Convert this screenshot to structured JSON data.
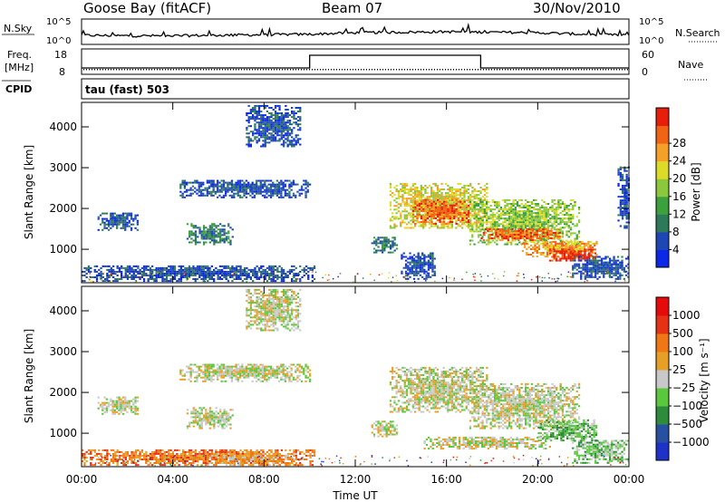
{
  "header": {
    "station": "Goose Bay (fitACF)",
    "beam": "Beam 07",
    "date": "30/Nov/2010"
  },
  "noise_panel": {
    "left_label": "N.Sky",
    "left_ticks": [
      "10^5",
      "10^0"
    ],
    "right_label": "N.Search",
    "right_ticks": [
      "10^5",
      "10^0"
    ]
  },
  "freq_panel": {
    "left_label_1": "Freq.",
    "left_label_2": "[MHz]",
    "left_ticks": [
      "18",
      "8"
    ],
    "right_label": "Nave",
    "right_ticks": [
      "60",
      "0"
    ],
    "cpid_label": "CPID",
    "mode_label": "tau (fast) 503"
  },
  "x_axis": {
    "title": "Time UT",
    "ticks": [
      "00:00",
      "04:00",
      "08:00",
      "12:00",
      "16:00",
      "20:00",
      "00:00"
    ]
  },
  "power_panel": {
    "ylabel": "Slant Range [km]",
    "yticks": [
      "1000",
      "2000",
      "3000",
      "4000"
    ],
    "colorbar_title": "Power [dB]",
    "colorbar_ticks": [
      "4",
      "8",
      "12",
      "16",
      "20",
      "24",
      "28"
    ],
    "colors": [
      "#0a28e6",
      "#1e46b4",
      "#2d7a5a",
      "#3ca03c",
      "#8cc83c",
      "#dcdc28",
      "#f5a028",
      "#f06414",
      "#e61e0a"
    ]
  },
  "velocity_panel": {
    "ylabel": "Slant Range [km]",
    "yticks": [
      "1000",
      "2000",
      "3000",
      "4000"
    ],
    "colorbar_title": "Velocity [m s⁻¹]",
    "colorbar_ticks": [
      "1000",
      "500",
      "100",
      "25",
      "−25",
      "−100",
      "−500",
      "−1000"
    ],
    "colors": [
      "#1e32c8",
      "#2850a0",
      "#2d8c3c",
      "#5ac83c",
      "#c8c8c8",
      "#e6a028",
      "#f07814",
      "#e63214",
      "#e60a0a"
    ]
  },
  "chart_data": [
    {
      "type": "line",
      "title": "N.Sky / N.Search",
      "x": [
        "00:00",
        "02:00",
        "04:00",
        "06:00",
        "08:00",
        "10:00",
        "12:00",
        "14:00",
        "16:00",
        "18:00",
        "20:00",
        "22:00",
        "24:00"
      ],
      "series": [
        {
          "name": "N.Sky",
          "values": [
            1.8,
            1.7,
            1.7,
            1.8,
            1.9,
            2.0,
            2.3,
            2.4,
            2.5,
            2.4,
            2.3,
            2.0,
            1.8
          ]
        }
      ],
      "ylim": [
        0,
        5
      ]
    },
    {
      "type": "line",
      "title": "Freq. / Nave",
      "x": [
        "00:00",
        "10:00",
        "10:00",
        "17:30",
        "17:30",
        "24:00"
      ],
      "series": [
        {
          "name": "Freq.",
          "values": [
            10.5,
            10.5,
            15.5,
            15.5,
            10.5,
            10.5
          ]
        }
      ],
      "ylim": [
        8,
        18
      ]
    },
    {
      "type": "heatmap",
      "title": "Power [dB]",
      "xlim_hours": [
        0,
        24
      ],
      "ylim_km": [
        180,
        4600
      ],
      "regions": [
        {
          "t0": 0.0,
          "t1": 10.2,
          "r0": 200,
          "r1": 600,
          "level": 1
        },
        {
          "t0": 0.7,
          "t1": 2.5,
          "r0": 1450,
          "r1": 1900,
          "level": 1
        },
        {
          "t0": 4.6,
          "t1": 6.6,
          "r0": 1100,
          "r1": 1600,
          "level": 2
        },
        {
          "t0": 4.3,
          "t1": 10.0,
          "r0": 2250,
          "r1": 2700,
          "level": 1
        },
        {
          "t0": 7.2,
          "t1": 9.6,
          "r0": 3500,
          "r1": 4500,
          "level": 1
        },
        {
          "t0": 13.5,
          "t1": 17.8,
          "r0": 1500,
          "r1": 2600,
          "level": 5
        },
        {
          "t0": 14.5,
          "t1": 17.0,
          "r0": 1600,
          "r1": 2200,
          "level": 7
        },
        {
          "t0": 17.0,
          "t1": 21.8,
          "r0": 1100,
          "r1": 2200,
          "level": 4
        },
        {
          "t0": 17.5,
          "t1": 21.0,
          "r0": 1200,
          "r1": 1500,
          "level": 7
        },
        {
          "t0": 19.3,
          "t1": 22.6,
          "r0": 800,
          "r1": 1200,
          "level": 6
        },
        {
          "t0": 20.5,
          "t1": 22.5,
          "r0": 700,
          "r1": 1000,
          "level": 8
        },
        {
          "t0": 21.5,
          "t1": 24.0,
          "r0": 250,
          "r1": 800,
          "level": 1
        },
        {
          "t0": 12.7,
          "t1": 13.8,
          "r0": 900,
          "r1": 1300,
          "level": 2
        },
        {
          "t0": 14.0,
          "t1": 15.5,
          "r0": 250,
          "r1": 900,
          "level": 1
        },
        {
          "t0": 23.5,
          "t1": 24.0,
          "r0": 1500,
          "r1": 3000,
          "level": 1
        }
      ]
    },
    {
      "type": "heatmap",
      "title": "Velocity [m s⁻¹]",
      "xlim_hours": [
        0,
        24
      ],
      "ylim_km": [
        180,
        4600
      ],
      "regions": [
        {
          "t0": 0.0,
          "t1": 10.2,
          "r0": 200,
          "r1": 600,
          "level": 6
        },
        {
          "t0": 0.7,
          "t1": 2.5,
          "r0": 1450,
          "r1": 1900,
          "level": 4
        },
        {
          "t0": 4.6,
          "t1": 6.6,
          "r0": 1100,
          "r1": 1600,
          "level": 4
        },
        {
          "t0": 4.3,
          "t1": 10.0,
          "r0": 2250,
          "r1": 2700,
          "level": 4
        },
        {
          "t0": 7.2,
          "t1": 9.6,
          "r0": 3500,
          "r1": 4500,
          "level": 4
        },
        {
          "t0": 5.5,
          "t1": 9.5,
          "r0": 200,
          "r1": 500,
          "level": 5
        },
        {
          "t0": 13.5,
          "t1": 17.8,
          "r0": 1500,
          "r1": 2600,
          "level": 4
        },
        {
          "t0": 17.0,
          "t1": 21.8,
          "r0": 1100,
          "r1": 2200,
          "level": 4
        },
        {
          "t0": 20.0,
          "t1": 22.6,
          "r0": 800,
          "r1": 1300,
          "level": 3
        },
        {
          "t0": 21.5,
          "t1": 24.0,
          "r0": 250,
          "r1": 800,
          "level": 3
        },
        {
          "t0": 15.0,
          "t1": 20.5,
          "r0": 600,
          "r1": 900,
          "level": 4
        },
        {
          "t0": 12.7,
          "t1": 13.8,
          "r0": 900,
          "r1": 1300,
          "level": 4
        }
      ]
    }
  ]
}
